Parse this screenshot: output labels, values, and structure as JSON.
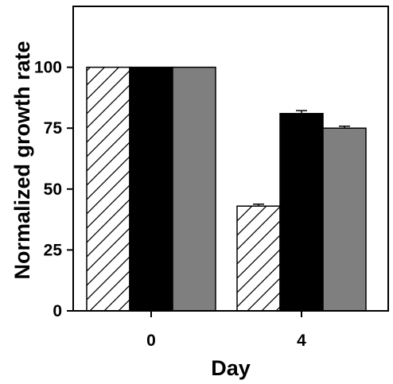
{
  "chart_data": {
    "type": "bar",
    "title": "",
    "xlabel": "Day",
    "ylabel": "Normalized growth rate",
    "categories": [
      "0",
      "4"
    ],
    "ylim": [
      0,
      125
    ],
    "yticks": [
      0,
      25,
      50,
      75,
      100
    ],
    "grid": false,
    "series": [
      {
        "values": [
          100,
          43
        ],
        "errors": [
          0,
          0.8
        ],
        "fill": "hatched"
      },
      {
        "values": [
          100,
          81
        ],
        "errors": [
          0,
          1.2
        ],
        "fill": "#000000"
      },
      {
        "values": [
          100,
          75
        ],
        "errors": [
          0,
          0.8
        ],
        "fill": "#7f7f7f"
      }
    ],
    "ytick_labels": [
      "0",
      "25",
      "50",
      "75",
      "100"
    ]
  }
}
